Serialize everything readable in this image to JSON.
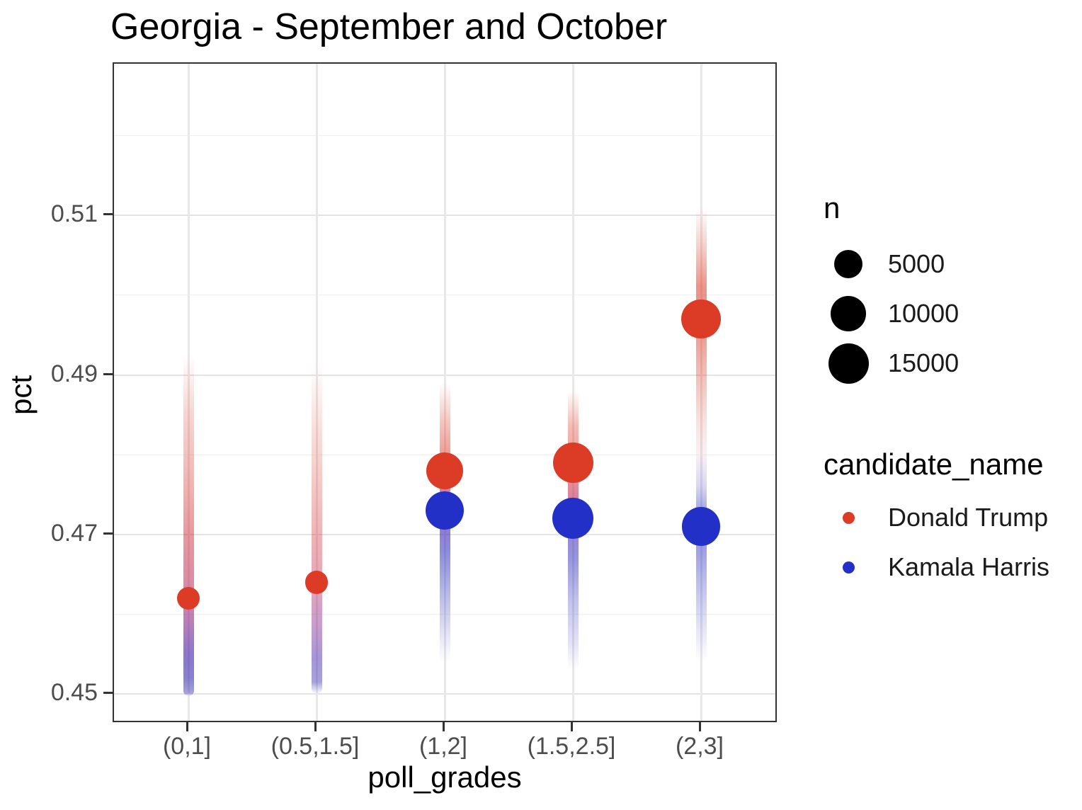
{
  "title": "Georgia - September and October",
  "chart_data": {
    "type": "scatter",
    "title": "Georgia - September and October",
    "xlabel": "poll_grades",
    "ylabel": "pct",
    "categories": [
      "(0,1]",
      "(0.5,1.5]",
      "(1,2]",
      "(1.5,2.5]",
      "(2,3]"
    ],
    "y_ticks": [
      0.45,
      0.47,
      0.49,
      0.51
    ],
    "y_tick_labels": [
      "0.45",
      "0.47",
      "0.49",
      "0.51"
    ],
    "y_minor_ticks": [
      0.46,
      0.48,
      0.5,
      0.52
    ],
    "ylim": [
      0.4463,
      0.529
    ],
    "grid": true,
    "legend_position": "right",
    "series": [
      {
        "name": "Donald Trump",
        "color": "#DC3B25",
        "points": [
          {
            "category": "(0,1]",
            "pct": 0.462,
            "n": 2100
          },
          {
            "category": "(0.5,1.5]",
            "pct": 0.464,
            "n": 2400
          },
          {
            "category": "(1,2]",
            "pct": 0.478,
            "n": 11500
          },
          {
            "category": "(1.5,2.5]",
            "pct": 0.479,
            "n": 15000
          },
          {
            "category": "(2,3]",
            "pct": 0.497,
            "n": 13700
          }
        ]
      },
      {
        "name": "Kamala Harris",
        "color": "#2230C7",
        "points": [
          {
            "category": "(1,2]",
            "pct": 0.473,
            "n": 13300
          },
          {
            "category": "(1.5,2.5]",
            "pct": 0.472,
            "n": 15600
          },
          {
            "category": "(2,3]",
            "pct": 0.471,
            "n": 13300
          }
        ]
      }
    ],
    "raw_point_bands": [
      {
        "category": "(0,1]",
        "pct_top": 0.4925,
        "pct_bottom": 0.4498,
        "stops": [
          {
            "pct": 0.4925,
            "color": "rgba(221,60,40,0)"
          },
          {
            "pct": 0.485,
            "color": "rgba(221,60,40,0.22)"
          },
          {
            "pct": 0.476,
            "color": "rgba(219,55,45,0.38)"
          },
          {
            "pct": 0.47,
            "color": "rgba(210,50,60,0.50)"
          },
          {
            "pct": 0.464,
            "color": "rgba(190,45,90,0.55)"
          },
          {
            "pct": 0.459,
            "color": "rgba(140,40,140,0.60)"
          },
          {
            "pct": 0.455,
            "color": "rgba(80,45,175,0.65)"
          },
          {
            "pct": 0.452,
            "color": "rgba(55,48,175,0.60)"
          },
          {
            "pct": 0.4502,
            "color": "rgba(55,48,175,0.45)"
          },
          {
            "pct": 0.4498,
            "color": "rgba(55,48,175,0)"
          }
        ]
      },
      {
        "category": "(0.5,1.5]",
        "pct_top": 0.4915,
        "pct_bottom": 0.45,
        "stops": [
          {
            "pct": 0.4915,
            "color": "rgba(221,60,40,0)"
          },
          {
            "pct": 0.484,
            "color": "rgba(221,60,40,0.15)"
          },
          {
            "pct": 0.476,
            "color": "rgba(219,55,45,0.28)"
          },
          {
            "pct": 0.469,
            "color": "rgba(210,50,60,0.38)"
          },
          {
            "pct": 0.4645,
            "color": "rgba(195,45,85,0.42)"
          },
          {
            "pct": 0.459,
            "color": "rgba(140,40,140,0.45)"
          },
          {
            "pct": 0.4545,
            "color": "rgba(80,45,175,0.50)"
          },
          {
            "pct": 0.4515,
            "color": "rgba(55,48,175,0.45)"
          },
          {
            "pct": 0.45,
            "color": "rgba(55,48,175,0)"
          }
        ]
      },
      {
        "category": "(1,2]",
        "pct_top": 0.489,
        "pct_bottom": 0.454,
        "stops": [
          {
            "pct": 0.489,
            "color": "rgba(221,60,40,0)"
          },
          {
            "pct": 0.484,
            "color": "rgba(221,60,40,0.30)"
          },
          {
            "pct": 0.48,
            "color": "rgba(221,60,40,0.50)"
          },
          {
            "pct": 0.476,
            "color": "rgba(200,50,90,0.60)"
          },
          {
            "pct": 0.472,
            "color": "rgba(90,45,180,0.65)"
          },
          {
            "pct": 0.468,
            "color": "rgba(45,45,190,0.55)"
          },
          {
            "pct": 0.463,
            "color": "rgba(45,45,190,0.35)"
          },
          {
            "pct": 0.458,
            "color": "rgba(45,45,190,0.15)"
          },
          {
            "pct": 0.454,
            "color": "rgba(45,45,190,0)"
          }
        ]
      },
      {
        "category": "(1.5,2.5]",
        "pct_top": 0.488,
        "pct_bottom": 0.453,
        "stops": [
          {
            "pct": 0.488,
            "color": "rgba(221,60,40,0)"
          },
          {
            "pct": 0.4835,
            "color": "rgba(221,60,40,0.35)"
          },
          {
            "pct": 0.479,
            "color": "rgba(221,60,40,0.50)"
          },
          {
            "pct": 0.475,
            "color": "rgba(200,50,90,0.60)"
          },
          {
            "pct": 0.471,
            "color": "rgba(90,45,180,0.60)"
          },
          {
            "pct": 0.467,
            "color": "rgba(45,45,190,0.50)"
          },
          {
            "pct": 0.462,
            "color": "rgba(45,45,190,0.30)"
          },
          {
            "pct": 0.456,
            "color": "rgba(45,45,190,0.12)"
          },
          {
            "pct": 0.453,
            "color": "rgba(45,45,190,0)"
          }
        ]
      },
      {
        "category": "(2,3]",
        "pct_top": 0.511,
        "pct_bottom": 0.454,
        "stops": [
          {
            "pct": 0.511,
            "color": "rgba(221,60,40,0)"
          },
          {
            "pct": 0.506,
            "color": "rgba(221,60,40,0.25)"
          },
          {
            "pct": 0.501,
            "color": "rgba(221,60,40,0.55)"
          },
          {
            "pct": 0.495,
            "color": "rgba(221,60,40,0.50)"
          },
          {
            "pct": 0.489,
            "color": "rgba(221,60,40,0.30)"
          },
          {
            "pct": 0.484,
            "color": "rgba(221,60,40,0.15)"
          },
          {
            "pct": 0.48,
            "color": "rgba(190,60,120,0.08)"
          },
          {
            "pct": 0.476,
            "color": "rgba(60,50,190,0.20)"
          },
          {
            "pct": 0.472,
            "color": "rgba(40,48,195,0.50)"
          },
          {
            "pct": 0.468,
            "color": "rgba(40,48,195,0.45)"
          },
          {
            "pct": 0.463,
            "color": "rgba(40,48,195,0.28)"
          },
          {
            "pct": 0.458,
            "color": "rgba(40,48,195,0.12)"
          },
          {
            "pct": 0.454,
            "color": "rgba(40,48,195,0)"
          }
        ]
      }
    ],
    "size_legend": {
      "title": "n",
      "entries": [
        5000,
        10000,
        15000
      ],
      "entry_labels": [
        "5000",
        "10000",
        "15000"
      ]
    },
    "color_legend": {
      "title": "candidate_name",
      "entries": [
        {
          "label": "Donald Trump",
          "color": "#DC3B25"
        },
        {
          "label": "Kamala Harris",
          "color": "#2230C7"
        }
      ]
    }
  }
}
